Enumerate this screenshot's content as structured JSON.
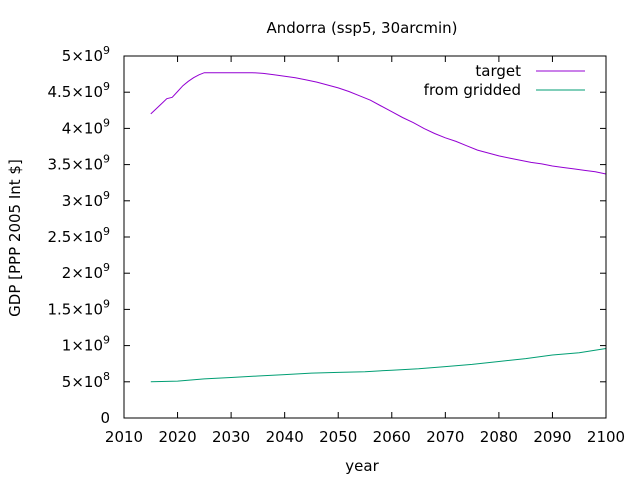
{
  "chart_data": {
    "type": "line",
    "title": "Andorra (ssp5, 30arcmin)",
    "xlabel": "year",
    "ylabel": "GDP [PPP 2005 Int $]",
    "xlim": [
      2010,
      2100
    ],
    "ylim": [
      0,
      5000000000
    ],
    "x_ticks": [
      2010,
      2020,
      2030,
      2040,
      2050,
      2060,
      2070,
      2080,
      2090,
      2100
    ],
    "x_tick_labels": [
      "2010",
      "2020",
      "2030",
      "2040",
      "2050",
      "2060",
      "2070",
      "2080",
      "2090",
      "2100"
    ],
    "y_ticks": [
      0,
      500000000,
      1000000000,
      1500000000,
      2000000000,
      2500000000,
      3000000000,
      3500000000,
      4000000000,
      4500000000,
      5000000000
    ],
    "y_tick_labels": [
      {
        "mant": "0",
        "exp": ""
      },
      {
        "mant": "5×10",
        "exp": "8"
      },
      {
        "mant": "1×10",
        "exp": "9"
      },
      {
        "mant": "1.5×10",
        "exp": "9"
      },
      {
        "mant": "2×10",
        "exp": "9"
      },
      {
        "mant": "2.5×10",
        "exp": "9"
      },
      {
        "mant": "3×10",
        "exp": "9"
      },
      {
        "mant": "3.5×10",
        "exp": "9"
      },
      {
        "mant": "4×10",
        "exp": "9"
      },
      {
        "mant": "4.5×10",
        "exp": "9"
      },
      {
        "mant": "5×10",
        "exp": "9"
      }
    ],
    "grid": false,
    "legend_position": "top-right",
    "series": [
      {
        "name": "target",
        "color": "#9400d3",
        "x": [
          2015,
          2016,
          2017,
          2018,
          2019,
          2020,
          2021,
          2022,
          2023,
          2024,
          2025,
          2026,
          2028,
          2030,
          2032,
          2034,
          2036,
          2038,
          2040,
          2042,
          2044,
          2046,
          2048,
          2050,
          2052,
          2054,
          2056,
          2058,
          2060,
          2062,
          2064,
          2066,
          2068,
          2070,
          2072,
          2074,
          2076,
          2078,
          2080,
          2082,
          2084,
          2086,
          2088,
          2090,
          2092,
          2094,
          2096,
          2098,
          2100
        ],
        "y": [
          4200000000,
          4270000000,
          4340000000,
          4410000000,
          4430000000,
          4510000000,
          4590000000,
          4650000000,
          4700000000,
          4740000000,
          4770000000,
          4770000000,
          4770000000,
          4770000000,
          4770000000,
          4770000000,
          4760000000,
          4740000000,
          4720000000,
          4700000000,
          4670000000,
          4640000000,
          4600000000,
          4560000000,
          4510000000,
          4450000000,
          4390000000,
          4310000000,
          4230000000,
          4150000000,
          4080000000,
          4000000000,
          3930000000,
          3870000000,
          3820000000,
          3760000000,
          3700000000,
          3660000000,
          3620000000,
          3590000000,
          3560000000,
          3530000000,
          3510000000,
          3480000000,
          3460000000,
          3440000000,
          3420000000,
          3400000000,
          3370000000
        ]
      },
      {
        "name": "from gridded",
        "color": "#009e73",
        "x": [
          2015,
          2020,
          2025,
          2030,
          2035,
          2040,
          2045,
          2050,
          2055,
          2060,
          2065,
          2070,
          2075,
          2080,
          2085,
          2090,
          2095,
          2100
        ],
        "y": [
          500000000,
          510000000,
          540000000,
          560000000,
          580000000,
          600000000,
          620000000,
          630000000,
          640000000,
          660000000,
          680000000,
          710000000,
          740000000,
          780000000,
          820000000,
          870000000,
          900000000,
          960000000
        ]
      }
    ]
  }
}
